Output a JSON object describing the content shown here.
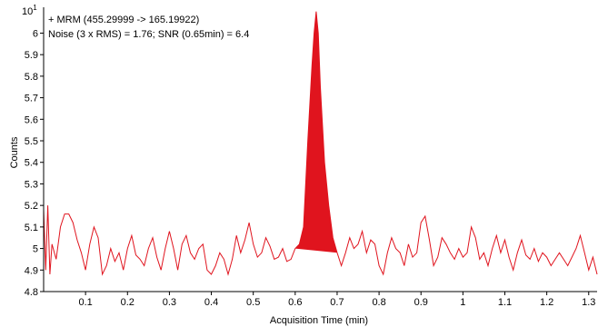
{
  "chart_data": {
    "type": "line",
    "xlabel": "Acquisition Time (min)",
    "ylabel": "Counts",
    "exponent_label": "10",
    "exponent_power": "1",
    "annotations": [
      "+ MRM (455.29999 -> 165.19922)",
      "Noise (3 x RMS) = 1.76; SNR (0.65min) = 6.4"
    ],
    "xlim": [
      0,
      1.32
    ],
    "ylim": [
      4.8,
      6.12
    ],
    "x_ticks": [
      0.1,
      0.2,
      0.3,
      0.4,
      0.5,
      0.6,
      0.7,
      0.8,
      0.9,
      1,
      1.1,
      1.2,
      1.3
    ],
    "y_ticks": [
      4.8,
      4.9,
      5,
      5.1,
      5.2,
      5.3,
      5.4,
      5.5,
      5.6,
      5.7,
      5.8,
      5.9,
      6
    ],
    "line_color": "#e0141e",
    "fill_color": "#e0141e",
    "peak_fill_range": [
      0.6,
      0.7
    ],
    "series": [
      {
        "x": [
          0.0,
          0.005,
          0.01,
          0.015,
          0.02,
          0.03,
          0.04,
          0.05,
          0.06,
          0.07,
          0.08,
          0.09,
          0.1,
          0.11,
          0.12,
          0.13,
          0.14,
          0.15,
          0.16,
          0.17,
          0.18,
          0.19,
          0.2,
          0.21,
          0.22,
          0.23,
          0.24,
          0.25,
          0.26,
          0.27,
          0.28,
          0.29,
          0.3,
          0.31,
          0.32,
          0.33,
          0.34,
          0.35,
          0.36,
          0.37,
          0.38,
          0.39,
          0.4,
          0.41,
          0.42,
          0.43,
          0.44,
          0.45,
          0.46,
          0.47,
          0.48,
          0.49,
          0.5,
          0.51,
          0.52,
          0.53,
          0.54,
          0.55,
          0.56,
          0.57,
          0.58,
          0.59,
          0.6,
          0.61,
          0.62,
          0.63,
          0.64,
          0.645,
          0.65,
          0.655,
          0.66,
          0.67,
          0.68,
          0.69,
          0.7,
          0.71,
          0.72,
          0.73,
          0.74,
          0.75,
          0.76,
          0.77,
          0.78,
          0.79,
          0.8,
          0.81,
          0.82,
          0.83,
          0.84,
          0.85,
          0.86,
          0.87,
          0.88,
          0.89,
          0.9,
          0.91,
          0.92,
          0.93,
          0.94,
          0.95,
          0.96,
          0.97,
          0.98,
          0.99,
          1.0,
          1.01,
          1.02,
          1.03,
          1.04,
          1.05,
          1.06,
          1.07,
          1.08,
          1.09,
          1.1,
          1.11,
          1.12,
          1.13,
          1.14,
          1.15,
          1.16,
          1.17,
          1.18,
          1.19,
          1.2,
          1.21,
          1.22,
          1.23,
          1.24,
          1.25,
          1.26,
          1.27,
          1.28,
          1.29,
          1.3,
          1.31,
          1.32
        ],
        "values": [
          5.18,
          4.9,
          5.2,
          4.88,
          5.02,
          4.95,
          5.1,
          5.16,
          5.16,
          5.12,
          5.04,
          4.98,
          4.9,
          5.02,
          5.1,
          5.05,
          4.88,
          4.92,
          5.0,
          4.94,
          4.98,
          4.9,
          5.0,
          5.06,
          4.97,
          4.95,
          4.92,
          5.0,
          5.05,
          4.96,
          4.9,
          5.0,
          5.08,
          5.0,
          4.9,
          5.02,
          5.06,
          4.98,
          4.95,
          5.0,
          5.02,
          4.9,
          4.88,
          4.92,
          4.98,
          4.95,
          4.88,
          4.95,
          5.06,
          4.98,
          5.04,
          5.12,
          5.02,
          4.96,
          4.98,
          5.05,
          5.01,
          4.95,
          4.96,
          5.0,
          4.94,
          4.95,
          5.0,
          5.02,
          5.1,
          5.5,
          5.85,
          6.0,
          6.1,
          6.0,
          5.75,
          5.4,
          5.2,
          5.05,
          4.98,
          4.92,
          4.98,
          5.05,
          5.0,
          5.02,
          5.08,
          4.98,
          5.04,
          5.02,
          4.92,
          4.88,
          4.98,
          5.05,
          5.0,
          4.98,
          4.92,
          5.02,
          4.96,
          4.98,
          5.12,
          5.15,
          5.04,
          4.92,
          4.96,
          5.05,
          5.02,
          4.98,
          4.95,
          5.0,
          4.96,
          4.98,
          5.1,
          5.05,
          4.95,
          4.98,
          4.92,
          5.0,
          5.06,
          4.98,
          5.04,
          4.96,
          4.9,
          4.98,
          5.04,
          4.97,
          4.95,
          5.0,
          4.94,
          4.98,
          4.96,
          4.92,
          4.95,
          4.98,
          4.95,
          4.92,
          4.96,
          5.0,
          5.06,
          4.98,
          4.9,
          4.96,
          4.88
        ]
      }
    ]
  }
}
